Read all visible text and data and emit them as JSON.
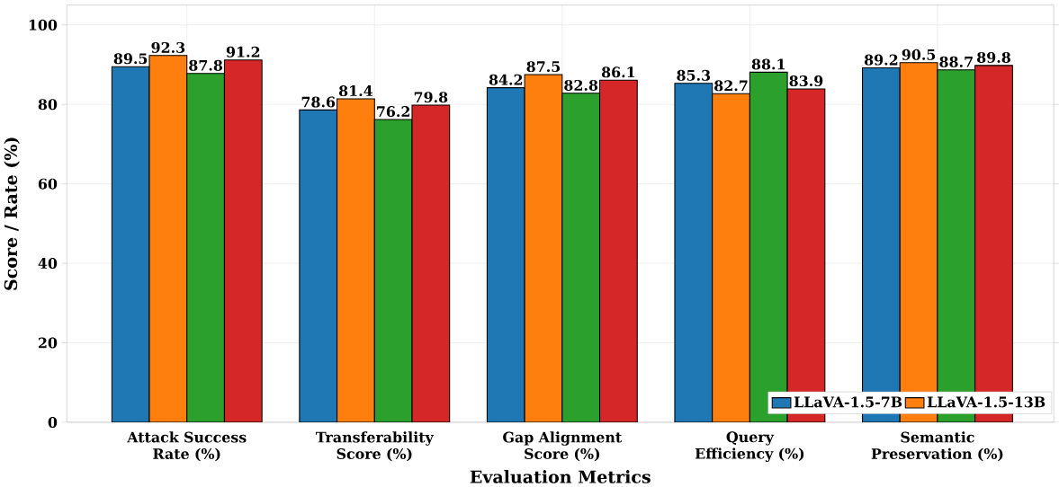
{
  "chart_data": {
    "type": "bar",
    "xlabel": "Evaluation Metrics",
    "ylabel": "Score / Rate (%)",
    "categories": [
      "Attack Success Rate (%)",
      "Transferability Score (%)",
      "Gap Alignment Score (%)",
      "Query Efficiency (%)",
      "Semantic Preservation (%)"
    ],
    "series": [
      {
        "name": "LLaVA-1.5-7B",
        "color": "#1f77b4",
        "values": [
          89.5,
          78.6,
          84.2,
          85.3,
          89.2
        ]
      },
      {
        "name": "LLaVA-1.5-13B",
        "color": "#ff7f0e",
        "values": [
          92.3,
          81.4,
          87.5,
          82.7,
          90.5
        ]
      },
      {
        "color": "#2ca02c",
        "values": [
          87.8,
          76.2,
          82.8,
          88.1,
          88.7
        ]
      },
      {
        "color": "#d62728",
        "values": [
          91.2,
          79.8,
          86.1,
          83.9,
          89.8
        ]
      }
    ],
    "ylim": [
      0,
      105
    ],
    "yticks": [
      0,
      20,
      40,
      60,
      80,
      100
    ],
    "grid": true,
    "legend": "bottom right",
    "data_labels": true
  }
}
